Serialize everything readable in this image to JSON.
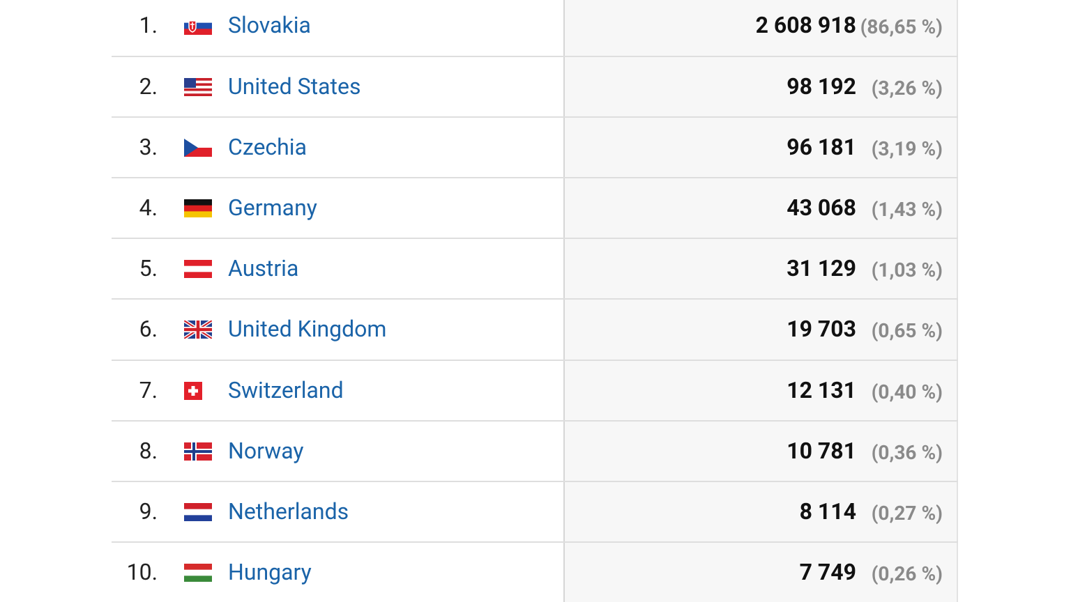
{
  "table": {
    "rows": [
      [
        "1.",
        "Slovakia",
        "2 608 918",
        "(86,65 %)"
      ],
      [
        "2.",
        "United States",
        "98 192",
        "(3,26 %)"
      ],
      [
        "3.",
        "Czechia",
        "96 181",
        "(3,19 %)"
      ],
      [
        "4.",
        "Germany",
        "43 068",
        "(1,43 %)"
      ],
      [
        "5.",
        "Austria",
        "31 129",
        "(1,03 %)"
      ],
      [
        "6.",
        "United Kingdom",
        "19 703",
        "(0,65 %)"
      ],
      [
        "7.",
        "Switzerland",
        "12 131",
        "(0,40 %)"
      ],
      [
        "8.",
        "Norway",
        "10 781",
        "(0,36 %)"
      ],
      [
        "9.",
        "Netherlands",
        "8 114",
        "(0,27 %)"
      ],
      [
        "10.",
        "Hungary",
        "7 749",
        "(0,26 %)"
      ]
    ]
  }
}
